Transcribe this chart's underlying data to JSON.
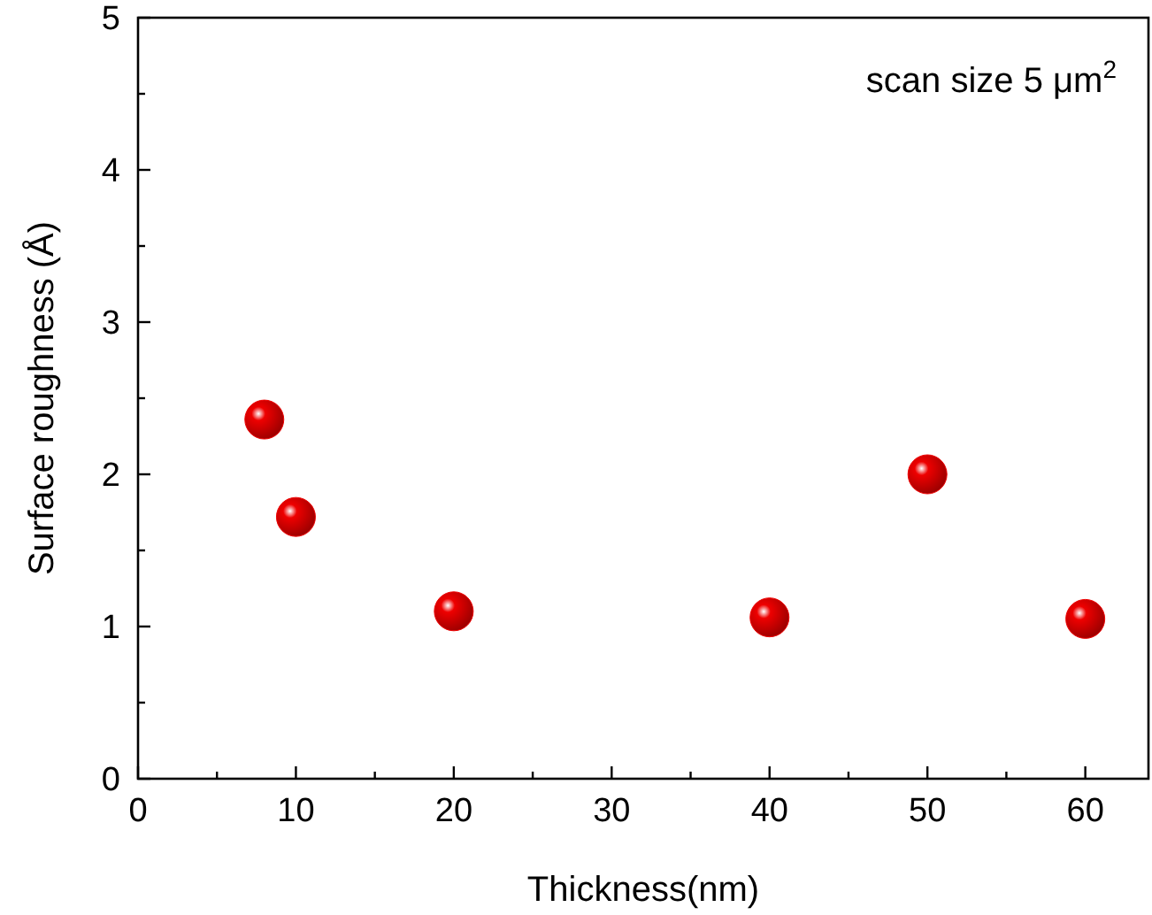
{
  "chart_data": {
    "type": "scatter",
    "xlabel": "Thickness(nm)",
    "ylabel": "Surface roughness (Å)",
    "annotations": [
      "scan size 5 μm$^{2}$"
    ],
    "x": [
      8,
      10,
      20,
      40,
      50,
      60
    ],
    "series": [
      {
        "color": "#ee0000",
        "values": [
          2.36,
          1.72,
          1.1,
          1.06,
          2.0,
          1.05
        ]
      }
    ],
    "xlim": [
      0,
      64
    ],
    "xticks": [
      0,
      {
        "value": 5,
        "label": null
      },
      10,
      {
        "value": 15,
        "label": null
      },
      20,
      {
        "value": 25,
        "label": null
      },
      30,
      {
        "value": 35,
        "label": null
      },
      40,
      {
        "value": 45,
        "label": null
      },
      50,
      {
        "value": 55,
        "label": null
      },
      60
    ],
    "ylim": [
      0,
      5
    ],
    "yticks": [
      0,
      {
        "value": 0.5,
        "label": null
      },
      1,
      {
        "value": 1.5,
        "label": null
      },
      2,
      {
        "value": 2.5,
        "label": null
      },
      3,
      {
        "value": 3.5,
        "label": null
      },
      4,
      {
        "value": 4.5,
        "label": null
      },
      5
    ],
    "marker": "circle",
    "grid": false
  }
}
